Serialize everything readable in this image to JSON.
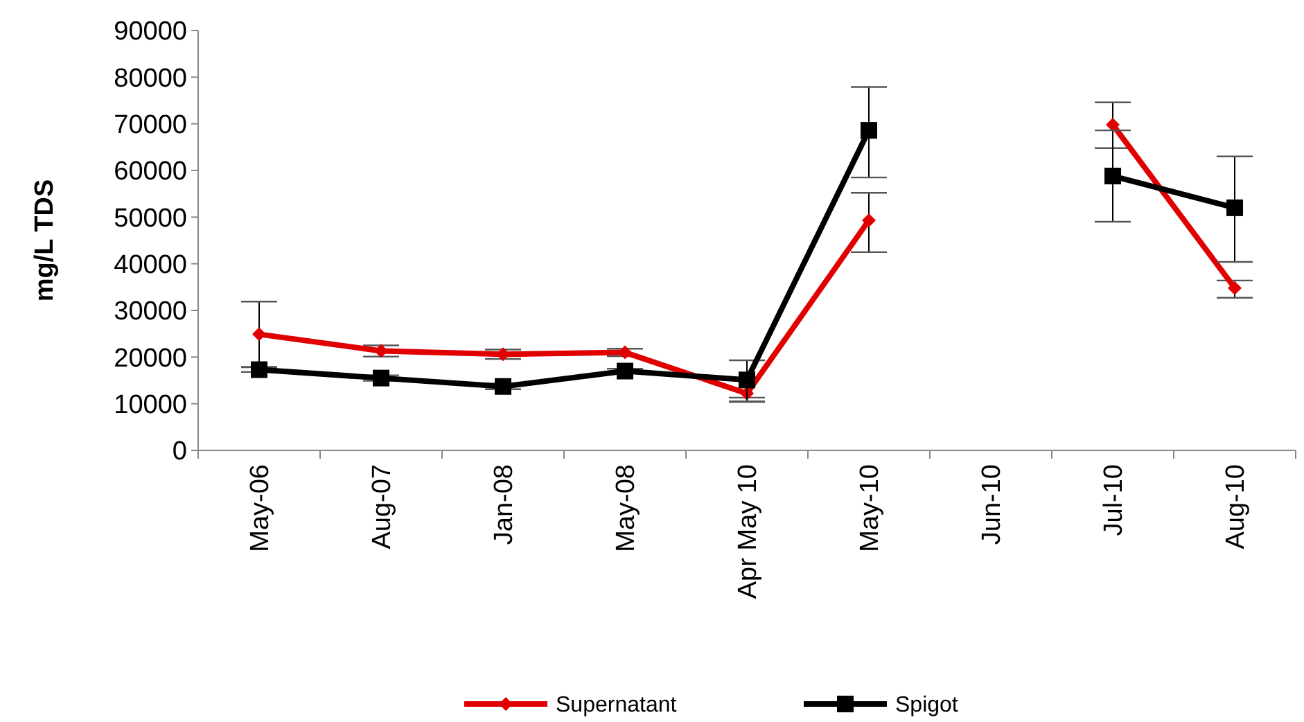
{
  "chart_data": {
    "type": "line",
    "ylabel": "mg/L TDS",
    "categories": [
      "May-06",
      "Aug-07",
      "Jan-08",
      "May-08",
      "Apr May 10",
      "May-10",
      "Jun-10",
      "Jul-10",
      "Aug-10"
    ],
    "series": [
      {
        "name": "Supernatant",
        "color": "#e00000",
        "marker": "diamond",
        "values": [
          24900,
          21300,
          20600,
          21000,
          12200,
          49300,
          null,
          69800,
          34800
        ],
        "errors": [
          7000,
          1200,
          1000,
          800,
          [
            10400,
            11300
          ],
          [
            42500,
            55200
          ],
          null,
          [
            64800,
            74600
          ],
          [
            32700,
            36400
          ]
        ]
      },
      {
        "name": "Spigot",
        "color": "#000000",
        "marker": "square",
        "values": [
          17300,
          15500,
          13700,
          17000,
          15100,
          68600,
          null,
          58800,
          52000
        ],
        "errors": [
          500,
          600,
          600,
          500,
          [
            10500,
            19300
          ],
          [
            58500,
            77900
          ],
          null,
          [
            49000,
            68600
          ],
          [
            40400,
            63000
          ]
        ]
      }
    ],
    "ylim": [
      0,
      90000
    ],
    "yticks": [
      0,
      10000,
      20000,
      30000,
      40000,
      50000,
      60000,
      70000,
      80000,
      90000
    ],
    "grid": false,
    "legend": "bottom"
  }
}
